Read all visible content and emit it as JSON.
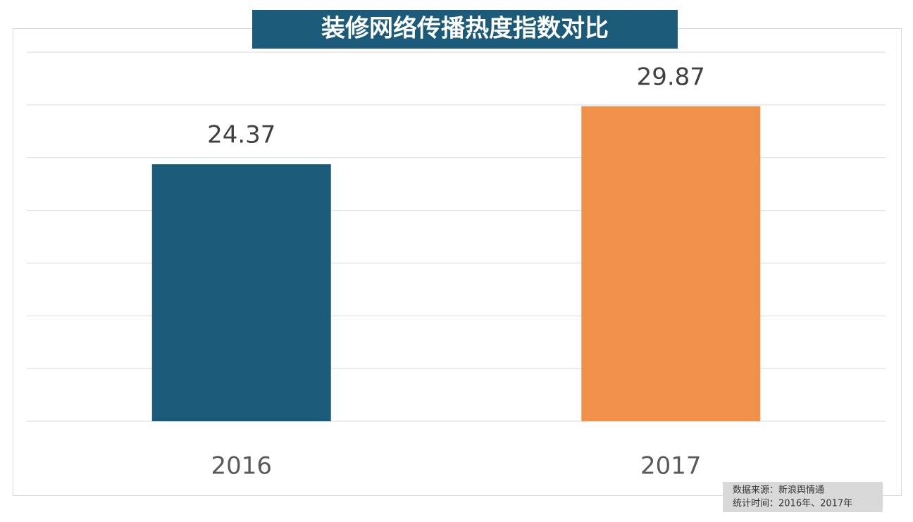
{
  "chart_data": {
    "type": "bar",
    "title": "装修网络传播热度指数对比",
    "categories": [
      "2016",
      "2017"
    ],
    "values": [
      24.37,
      29.87
    ],
    "colors": [
      "#1c5a7a",
      "#f0914b"
    ],
    "ylim": [
      0,
      35
    ],
    "yticks": [
      0,
      5,
      10,
      15,
      20,
      25,
      30,
      35
    ],
    "grid": true,
    "source_notes": [
      "数据来源：新浪舆情通",
      "统计时间：2016年、2017年"
    ]
  }
}
